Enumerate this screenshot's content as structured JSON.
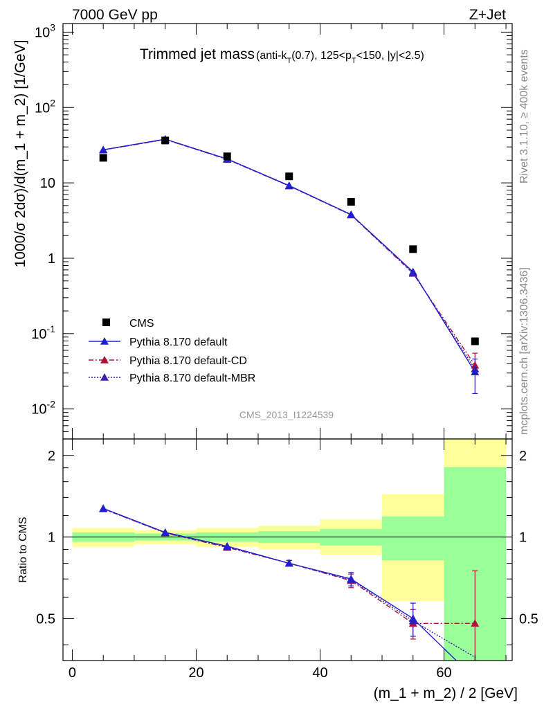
{
  "header": {
    "energy_label": "7000 GeV pp",
    "process_label": "Z+Jet"
  },
  "side_labels": {
    "rivet": "Rivet 3.1.10, ≥ 400k events",
    "mcplots": "mcplots.cern.ch [arXiv:1306.3436]"
  },
  "colors": {
    "data": "#000000",
    "default": "#1f1fd0",
    "cd": "#b0103a",
    "mbr": "#3b1fa6",
    "band_inner": "#99ff99",
    "band_outer": "#ffff99"
  },
  "chart_data": [
    {
      "type": "scatter",
      "title_main": "Trimmed jet mass",
      "title_detail": "(anti-k_T(0.7), 125<p_T<150, |y|<2.5)",
      "title_detail_parts": [
        "(anti-k",
        "T",
        "(0.7), 125<p",
        "T",
        "<150, |y|<2.5)"
      ],
      "ylabel": "1000/σ 2dσ)/d(m_1 + m_2) [1/GeV]",
      "yscale": "log",
      "ylim": [
        0.004,
        1300
      ],
      "xlim": [
        -1.5,
        71
      ],
      "ytick_labels": [
        "10^-2",
        "10^-1",
        "1",
        "10",
        "10^2",
        "10^3"
      ],
      "watermark": "CMS_2013_I1224539",
      "legend_position": "lower-left",
      "x": [
        5,
        15,
        25,
        35,
        45,
        55,
        65
      ],
      "series": [
        {
          "name": "CMS",
          "style": "square-marker",
          "values": [
            21.5,
            36.5,
            22.5,
            12.2,
            5.6,
            1.32,
            0.079
          ]
        },
        {
          "name": "Pythia 8.170 default",
          "style": "solid-line-triangle",
          "values": [
            27.5,
            38.0,
            20.8,
            9.2,
            3.8,
            0.66,
            0.031
          ],
          "err_last": [
            0.016,
            0.046
          ]
        },
        {
          "name": "Pythia 8.170 default-CD",
          "style": "dashdot-line-triangle",
          "values": [
            27.3,
            37.6,
            20.5,
            9.1,
            3.75,
            0.63,
            0.038
          ],
          "err_last": [
            0.03,
            0.055
          ]
        },
        {
          "name": "Pythia 8.170 default-MBR",
          "style": "dotted-line-triangle",
          "values": [
            27.4,
            37.8,
            20.6,
            9.15,
            3.77,
            0.64,
            0.034
          ]
        }
      ]
    },
    {
      "type": "line",
      "ylabel": "Ratio to CMS",
      "xlabel": "(m_1 + m_2) / 2 [GeV]",
      "xlim": [
        -1.5,
        71
      ],
      "ylim": [
        0.35,
        2.3
      ],
      "xticks": [
        0,
        20,
        40,
        60
      ],
      "yticks": [
        0.5,
        1,
        2
      ],
      "reference_line": 1,
      "bins": [
        {
          "lo": 0,
          "hi": 10,
          "inner": [
            0.96,
            1.04
          ],
          "outer": [
            0.92,
            1.08
          ]
        },
        {
          "lo": 10,
          "hi": 20,
          "inner": [
            0.97,
            1.03
          ],
          "outer": [
            0.94,
            1.06
          ]
        },
        {
          "lo": 20,
          "hi": 30,
          "inner": [
            0.96,
            1.04
          ],
          "outer": [
            0.92,
            1.08
          ]
        },
        {
          "lo": 30,
          "hi": 40,
          "inner": [
            0.95,
            1.05
          ],
          "outer": [
            0.9,
            1.1
          ]
        },
        {
          "lo": 40,
          "hi": 50,
          "inner": [
            0.93,
            1.07
          ],
          "outer": [
            0.86,
            1.16
          ]
        },
        {
          "lo": 50,
          "hi": 60,
          "inner": [
            0.82,
            1.19
          ],
          "outer": [
            0.58,
            1.44
          ]
        },
        {
          "lo": 60,
          "hi": 70,
          "inner": [
            0.35,
            1.81
          ],
          "outer": [
            0.35,
            2.3
          ]
        }
      ],
      "x": [
        5,
        15,
        25,
        35,
        45,
        55,
        65
      ],
      "series": [
        {
          "name": "Pythia 8.170 default",
          "values": [
            1.275,
            1.04,
            0.925,
            0.8,
            0.7,
            0.5,
            0.3
          ],
          "err": [
            null,
            null,
            null,
            0.02,
            0.04,
            0.07,
            null
          ]
        },
        {
          "name": "Pythia 8.170 default-CD",
          "values": [
            1.27,
            1.035,
            0.915,
            0.8,
            0.69,
            0.48,
            0.48
          ],
          "err": [
            null,
            null,
            null,
            0.02,
            0.04,
            0.06,
            0.27
          ]
        },
        {
          "name": "Pythia 8.170 default-MBR",
          "values": [
            1.272,
            1.037,
            0.92,
            0.8,
            0.695,
            0.49,
            0.36
          ]
        }
      ]
    }
  ]
}
